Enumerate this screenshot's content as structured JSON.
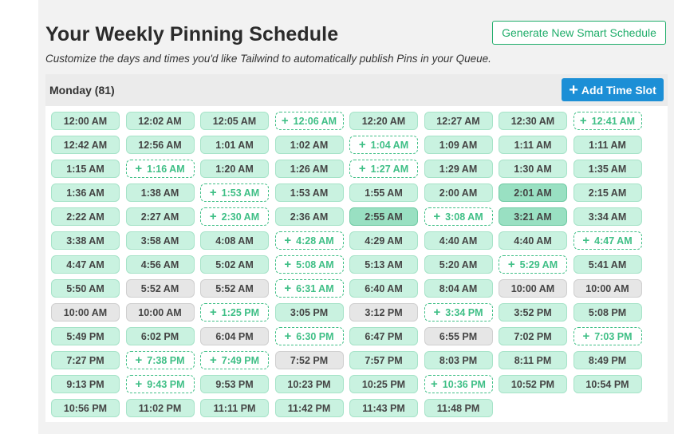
{
  "page": {
    "title": "Your Weekly Pinning Schedule",
    "subtitle": "Customize the days and times you'd like Tailwind to automatically publish Pins in your Queue.",
    "generate_button": "Generate New Smart Schedule"
  },
  "day": {
    "title": "Monday (81)",
    "add_button": "Add Time Slot",
    "add_icon": "+"
  },
  "colors": {
    "accent_green": "#1fad6a",
    "add_button_blue": "#1c8fd6",
    "slot_filled": "#c9f2e0",
    "slot_active": "#99e0c2",
    "slot_gray": "#e6e6e6"
  },
  "slots": [
    {
      "t": "12:00 AM",
      "s": "filled"
    },
    {
      "t": "12:02 AM",
      "s": "filled"
    },
    {
      "t": "12:05 AM",
      "s": "filled"
    },
    {
      "t": "12:06 AM",
      "s": "empty"
    },
    {
      "t": "12:20 AM",
      "s": "filled"
    },
    {
      "t": "12:27 AM",
      "s": "filled"
    },
    {
      "t": "12:30 AM",
      "s": "filled"
    },
    {
      "t": "12:41 AM",
      "s": "empty"
    },
    {
      "t": "12:42 AM",
      "s": "filled"
    },
    {
      "t": "12:56 AM",
      "s": "filled"
    },
    {
      "t": "1:01 AM",
      "s": "filled"
    },
    {
      "t": "1:02 AM",
      "s": "filled"
    },
    {
      "t": "1:04 AM",
      "s": "empty"
    },
    {
      "t": "1:09 AM",
      "s": "filled"
    },
    {
      "t": "1:11 AM",
      "s": "filled"
    },
    {
      "t": "1:11 AM",
      "s": "filled"
    },
    {
      "t": "1:15 AM",
      "s": "filled"
    },
    {
      "t": "1:16 AM",
      "s": "empty"
    },
    {
      "t": "1:20 AM",
      "s": "filled"
    },
    {
      "t": "1:26 AM",
      "s": "filled"
    },
    {
      "t": "1:27 AM",
      "s": "empty"
    },
    {
      "t": "1:29 AM",
      "s": "filled"
    },
    {
      "t": "1:30 AM",
      "s": "filled"
    },
    {
      "t": "1:35 AM",
      "s": "filled"
    },
    {
      "t": "1:36 AM",
      "s": "filled"
    },
    {
      "t": "1:38 AM",
      "s": "filled"
    },
    {
      "t": "1:53 AM",
      "s": "empty"
    },
    {
      "t": "1:53 AM",
      "s": "filled"
    },
    {
      "t": "1:55 AM",
      "s": "filled"
    },
    {
      "t": "2:00 AM",
      "s": "filled"
    },
    {
      "t": "2:01 AM",
      "s": "active"
    },
    {
      "t": "2:15 AM",
      "s": "filled"
    },
    {
      "t": "2:22 AM",
      "s": "filled"
    },
    {
      "t": "2:27 AM",
      "s": "filled"
    },
    {
      "t": "2:30 AM",
      "s": "empty"
    },
    {
      "t": "2:36 AM",
      "s": "filled"
    },
    {
      "t": "2:55 AM",
      "s": "active"
    },
    {
      "t": "3:08 AM",
      "s": "empty"
    },
    {
      "t": "3:21 AM",
      "s": "active"
    },
    {
      "t": "3:34 AM",
      "s": "filled"
    },
    {
      "t": "3:38 AM",
      "s": "filled"
    },
    {
      "t": "3:58 AM",
      "s": "filled"
    },
    {
      "t": "4:08 AM",
      "s": "filled"
    },
    {
      "t": "4:28 AM",
      "s": "empty"
    },
    {
      "t": "4:29 AM",
      "s": "filled"
    },
    {
      "t": "4:40 AM",
      "s": "filled"
    },
    {
      "t": "4:40 AM",
      "s": "filled"
    },
    {
      "t": "4:47 AM",
      "s": "empty"
    },
    {
      "t": "4:47 AM",
      "s": "filled"
    },
    {
      "t": "4:56 AM",
      "s": "filled"
    },
    {
      "t": "5:02 AM",
      "s": "filled"
    },
    {
      "t": "5:08 AM",
      "s": "empty"
    },
    {
      "t": "5:13 AM",
      "s": "filled"
    },
    {
      "t": "5:20 AM",
      "s": "filled"
    },
    {
      "t": "5:29 AM",
      "s": "empty"
    },
    {
      "t": "5:41 AM",
      "s": "filled"
    },
    {
      "t": "5:50 AM",
      "s": "filled"
    },
    {
      "t": "5:52 AM",
      "s": "gray"
    },
    {
      "t": "5:52 AM",
      "s": "gray"
    },
    {
      "t": "6:31 AM",
      "s": "empty"
    },
    {
      "t": "6:40 AM",
      "s": "filled"
    },
    {
      "t": "8:04 AM",
      "s": "filled"
    },
    {
      "t": "10:00 AM",
      "s": "gray"
    },
    {
      "t": "10:00 AM",
      "s": "gray"
    },
    {
      "t": "10:00 AM",
      "s": "gray"
    },
    {
      "t": "10:00 AM",
      "s": "gray"
    },
    {
      "t": "1:25 PM",
      "s": "empty"
    },
    {
      "t": "3:05 PM",
      "s": "filled"
    },
    {
      "t": "3:12 PM",
      "s": "gray"
    },
    {
      "t": "3:34 PM",
      "s": "empty"
    },
    {
      "t": "3:52 PM",
      "s": "filled"
    },
    {
      "t": "5:08 PM",
      "s": "filled"
    },
    {
      "t": "5:49 PM",
      "s": "filled"
    },
    {
      "t": "6:02 PM",
      "s": "filled"
    },
    {
      "t": "6:04 PM",
      "s": "gray"
    },
    {
      "t": "6:30 PM",
      "s": "empty"
    },
    {
      "t": "6:47 PM",
      "s": "filled"
    },
    {
      "t": "6:55 PM",
      "s": "gray"
    },
    {
      "t": "7:02 PM",
      "s": "filled"
    },
    {
      "t": "7:03 PM",
      "s": "empty"
    },
    {
      "t": "7:27 PM",
      "s": "filled"
    },
    {
      "t": "7:38 PM",
      "s": "empty"
    },
    {
      "t": "7:49 PM",
      "s": "empty"
    },
    {
      "t": "7:52 PM",
      "s": "gray"
    },
    {
      "t": "7:57 PM",
      "s": "filled"
    },
    {
      "t": "8:03 PM",
      "s": "filled"
    },
    {
      "t": "8:11 PM",
      "s": "filled"
    },
    {
      "t": "8:49 PM",
      "s": "filled"
    },
    {
      "t": "9:13 PM",
      "s": "filled"
    },
    {
      "t": "9:43 PM",
      "s": "empty"
    },
    {
      "t": "9:53 PM",
      "s": "filled"
    },
    {
      "t": "10:23 PM",
      "s": "filled"
    },
    {
      "t": "10:25 PM",
      "s": "filled"
    },
    {
      "t": "10:36 PM",
      "s": "empty"
    },
    {
      "t": "10:52 PM",
      "s": "filled"
    },
    {
      "t": "10:54 PM",
      "s": "filled"
    },
    {
      "t": "10:56 PM",
      "s": "filled"
    },
    {
      "t": "11:02 PM",
      "s": "filled"
    },
    {
      "t": "11:11 PM",
      "s": "filled"
    },
    {
      "t": "11:42 PM",
      "s": "filled"
    },
    {
      "t": "11:43 PM",
      "s": "filled"
    },
    {
      "t": "11:48 PM",
      "s": "filled"
    }
  ]
}
